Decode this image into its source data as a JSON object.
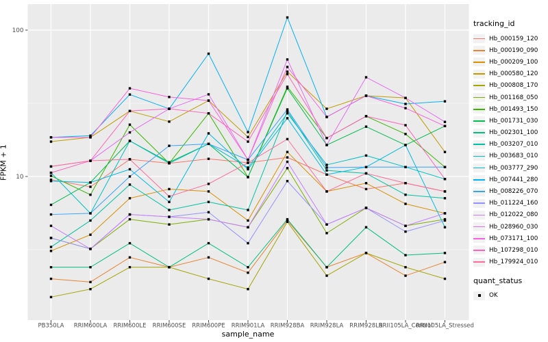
{
  "axes": {
    "y_title": "FPKM + 1",
    "x_title": "sample_name"
  },
  "legend": {
    "tracking_title": "tracking_id",
    "quant_title": "quant_status",
    "quant_items": [
      {
        "label": "OK"
      }
    ]
  },
  "style": {
    "panel_bg": "#EBEBEB",
    "grid_color": "#FFFFFF",
    "tick_color": "#333333",
    "tick_label_color": "#4D4D4D",
    "point_color": "#000000"
  },
  "chart_data": {
    "type": "line",
    "title": "",
    "xlabel": "sample_name",
    "ylabel": "FPKM + 1",
    "y_scale": "log10",
    "ylim": [
      1.05,
      150
    ],
    "y_major_ticks": [
      100,
      10
    ],
    "y_minor_ticks": [
      31.62,
      3.162
    ],
    "grid": true,
    "legend_position": "right",
    "point_shape": "filled-square",
    "categories": [
      "PB350LA",
      "RRIM600LA",
      "RRIM600LE",
      "RRIM600SE",
      "RRIM600PE",
      "RRIM901LA",
      "RRIM928BA",
      "RRIM928LA",
      "RRIM928LB",
      "RRII105LA_Control",
      "RRII105LA_Stressed"
    ],
    "series": [
      {
        "name": "Hb_000159_120",
        "color": "#F8766D",
        "values": [
          9.5,
          8.5,
          13.1,
          12.3,
          13.2,
          12.4,
          13.5,
          10.3,
          8.2,
          9.0,
          7.9
        ]
      },
      {
        "name": "Hb_000190_090",
        "color": "#EA8331",
        "values": [
          2.0,
          1.9,
          2.8,
          2.4,
          2.8,
          2.2,
          5.0,
          2.4,
          3.0,
          2.1,
          2.6
        ]
      },
      {
        "name": "Hb_000209_100",
        "color": "#D89000",
        "values": [
          3.1,
          4.0,
          7.1,
          8.2,
          7.9,
          5.0,
          14.7,
          7.9,
          9.0,
          6.5,
          5.6
        ]
      },
      {
        "name": "Hb_000580_120",
        "color": "#C09B00",
        "values": [
          17.3,
          18.5,
          28.0,
          23.7,
          33.0,
          18.6,
          52.0,
          29.0,
          35.6,
          34.4,
          14.7
        ]
      },
      {
        "name": "Hb_000808_170",
        "color": "#A3A500",
        "values": [
          1.5,
          1.7,
          2.4,
          2.4,
          2.0,
          1.7,
          4.9,
          2.1,
          3.0,
          2.4,
          2.0
        ]
      },
      {
        "name": "Hb_001168_050",
        "color": "#7CAE00",
        "values": [
          3.8,
          3.2,
          5.1,
          4.7,
          5.1,
          4.5,
          11.4,
          4.1,
          6.1,
          4.6,
          5.1
        ]
      },
      {
        "name": "Hb_001493_150",
        "color": "#39B600",
        "values": [
          10.1,
          7.5,
          22.6,
          12.3,
          27.0,
          9.9,
          41.0,
          18.3,
          25.8,
          19.5,
          11.6
        ]
      },
      {
        "name": "Hb_001731_030",
        "color": "#00BB4E",
        "values": [
          6.4,
          9.1,
          17.5,
          12.5,
          16.7,
          9.9,
          40.0,
          16.4,
          21.9,
          16.4,
          22.1
        ]
      },
      {
        "name": "Hb_002301_100",
        "color": "#00BF7D",
        "values": [
          2.4,
          2.4,
          3.5,
          2.4,
          3.5,
          2.4,
          5.1,
          2.4,
          4.5,
          2.9,
          3.0
        ]
      },
      {
        "name": "Hb_003207_010",
        "color": "#00C1A3",
        "values": [
          3.3,
          5.0,
          8.8,
          5.9,
          6.7,
          5.9,
          28.0,
          11.0,
          10.5,
          7.5,
          7.1
        ]
      },
      {
        "name": "Hb_003683_010",
        "color": "#00BFC4",
        "values": [
          10.6,
          5.6,
          17.5,
          12.3,
          16.7,
          11.5,
          27.0,
          12.0,
          13.9,
          11.6,
          9.6
        ]
      },
      {
        "name": "Hb_003777_290",
        "color": "#00BAE0",
        "values": [
          9.3,
          9.1,
          11.2,
          6.7,
          19.7,
          11.2,
          25.0,
          10.3,
          11.6,
          16.4,
          4.5
        ]
      },
      {
        "name": "Hb_007441_280",
        "color": "#00B0F6",
        "values": [
          18.5,
          19.0,
          36.3,
          29.0,
          69.0,
          20.1,
          122.0,
          25.5,
          35.6,
          31.3,
          32.6
        ]
      },
      {
        "name": "Hb_008226_070",
        "color": "#35A2FF",
        "values": [
          5.5,
          5.6,
          10.0,
          16.2,
          16.7,
          13.0,
          28.7,
          11.5,
          11.6,
          11.6,
          11.6
        ]
      },
      {
        "name": "Hb_011224_160",
        "color": "#9590FF",
        "values": [
          3.8,
          3.2,
          5.5,
          5.3,
          5.7,
          3.5,
          9.3,
          4.7,
          6.1,
          4.2,
          5.0
        ]
      },
      {
        "name": "Hb_012022_080",
        "color": "#C77CFF",
        "values": [
          4.6,
          3.2,
          5.5,
          5.3,
          5.1,
          4.5,
          12.6,
          4.7,
          6.1,
          4.6,
          5.6
        ]
      },
      {
        "name": "Hb_028960_030",
        "color": "#E76BF3",
        "values": [
          11.7,
          12.8,
          20.0,
          29.0,
          36.4,
          13.0,
          63.0,
          16.4,
          47.6,
          34.4,
          23.6
        ]
      },
      {
        "name": "Hb_073171_100",
        "color": "#FA62DB",
        "values": [
          18.5,
          18.5,
          40.0,
          34.9,
          33.0,
          13.0,
          56.0,
          25.5,
          35.6,
          29.3,
          22.1
        ]
      },
      {
        "name": "Hb_107298_010",
        "color": "#FF62BC",
        "values": [
          10.6,
          12.8,
          28.0,
          29.0,
          27.0,
          17.3,
          50.0,
          18.3,
          25.8,
          22.4,
          9.6
        ]
      },
      {
        "name": "Hb_179924_010",
        "color": "#FF6A98",
        "values": [
          11.7,
          12.8,
          13.1,
          7.3,
          8.9,
          12.4,
          18.0,
          7.9,
          10.5,
          9.0,
          7.9
        ]
      }
    ]
  }
}
